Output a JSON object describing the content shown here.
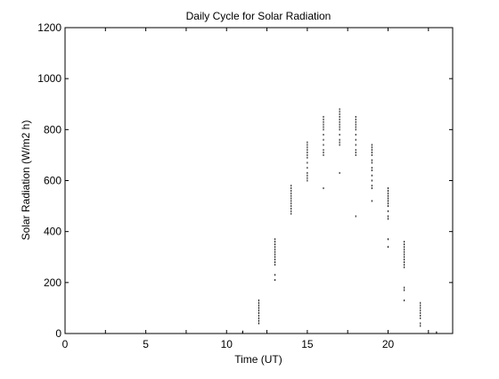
{
  "chart_data": {
    "type": "scatter",
    "title": "Daily Cycle for Solar Radiation",
    "xlabel": "Time (UT)",
    "ylabel": "Solar Radiation (W/m2 h)",
    "xlim": [
      0,
      24
    ],
    "ylim": [
      0,
      1200
    ],
    "xticks": [
      0,
      5,
      10,
      15,
      20
    ],
    "yticks": [
      0,
      200,
      400,
      600,
      800,
      1000,
      1200
    ],
    "grid": false,
    "legend": "none",
    "marker_color": "#000000",
    "points": [
      {
        "x": 11,
        "y": [
          2,
          5,
          8
        ]
      },
      {
        "x": 12,
        "y": [
          40,
          50,
          60,
          70,
          80,
          90,
          100,
          110,
          120,
          130
        ]
      },
      {
        "x": 13,
        "y": [
          210,
          230,
          270,
          280,
          290,
          300,
          310,
          320,
          330,
          340,
          350,
          360,
          370
        ]
      },
      {
        "x": 14,
        "y": [
          470,
          480,
          490,
          500,
          510,
          520,
          530,
          540,
          550,
          560,
          570,
          580
        ]
      },
      {
        "x": 15,
        "y": [
          600,
          610,
          620,
          630,
          650,
          670,
          690,
          700,
          710,
          720,
          730,
          740,
          750
        ]
      },
      {
        "x": 16,
        "y": [
          570,
          700,
          710,
          720,
          740,
          760,
          780,
          800,
          810,
          820,
          830,
          840,
          850
        ]
      },
      {
        "x": 17,
        "y": [
          630,
          740,
          750,
          760,
          780,
          800,
          810,
          820,
          830,
          840,
          850,
          860,
          870,
          880
        ]
      },
      {
        "x": 18,
        "y": [
          460,
          700,
          710,
          720,
          740,
          760,
          780,
          800,
          810,
          820,
          830,
          840,
          850
        ]
      },
      {
        "x": 19,
        "y": [
          520,
          570,
          580,
          600,
          620,
          640,
          650,
          670,
          680,
          700,
          710,
          720,
          730,
          740
        ]
      },
      {
        "x": 20,
        "y": [
          340,
          370,
          450,
          460,
          480,
          500,
          510,
          520,
          530,
          540,
          550,
          560,
          570
        ]
      },
      {
        "x": 21,
        "y": [
          130,
          170,
          180,
          260,
          270,
          280,
          290,
          300,
          310,
          320,
          330,
          340,
          350,
          360
        ]
      },
      {
        "x": 22,
        "y": [
          30,
          40,
          60,
          70,
          80,
          90,
          100,
          110,
          120
        ]
      },
      {
        "x": 23,
        "y": [
          2,
          5
        ]
      }
    ]
  }
}
